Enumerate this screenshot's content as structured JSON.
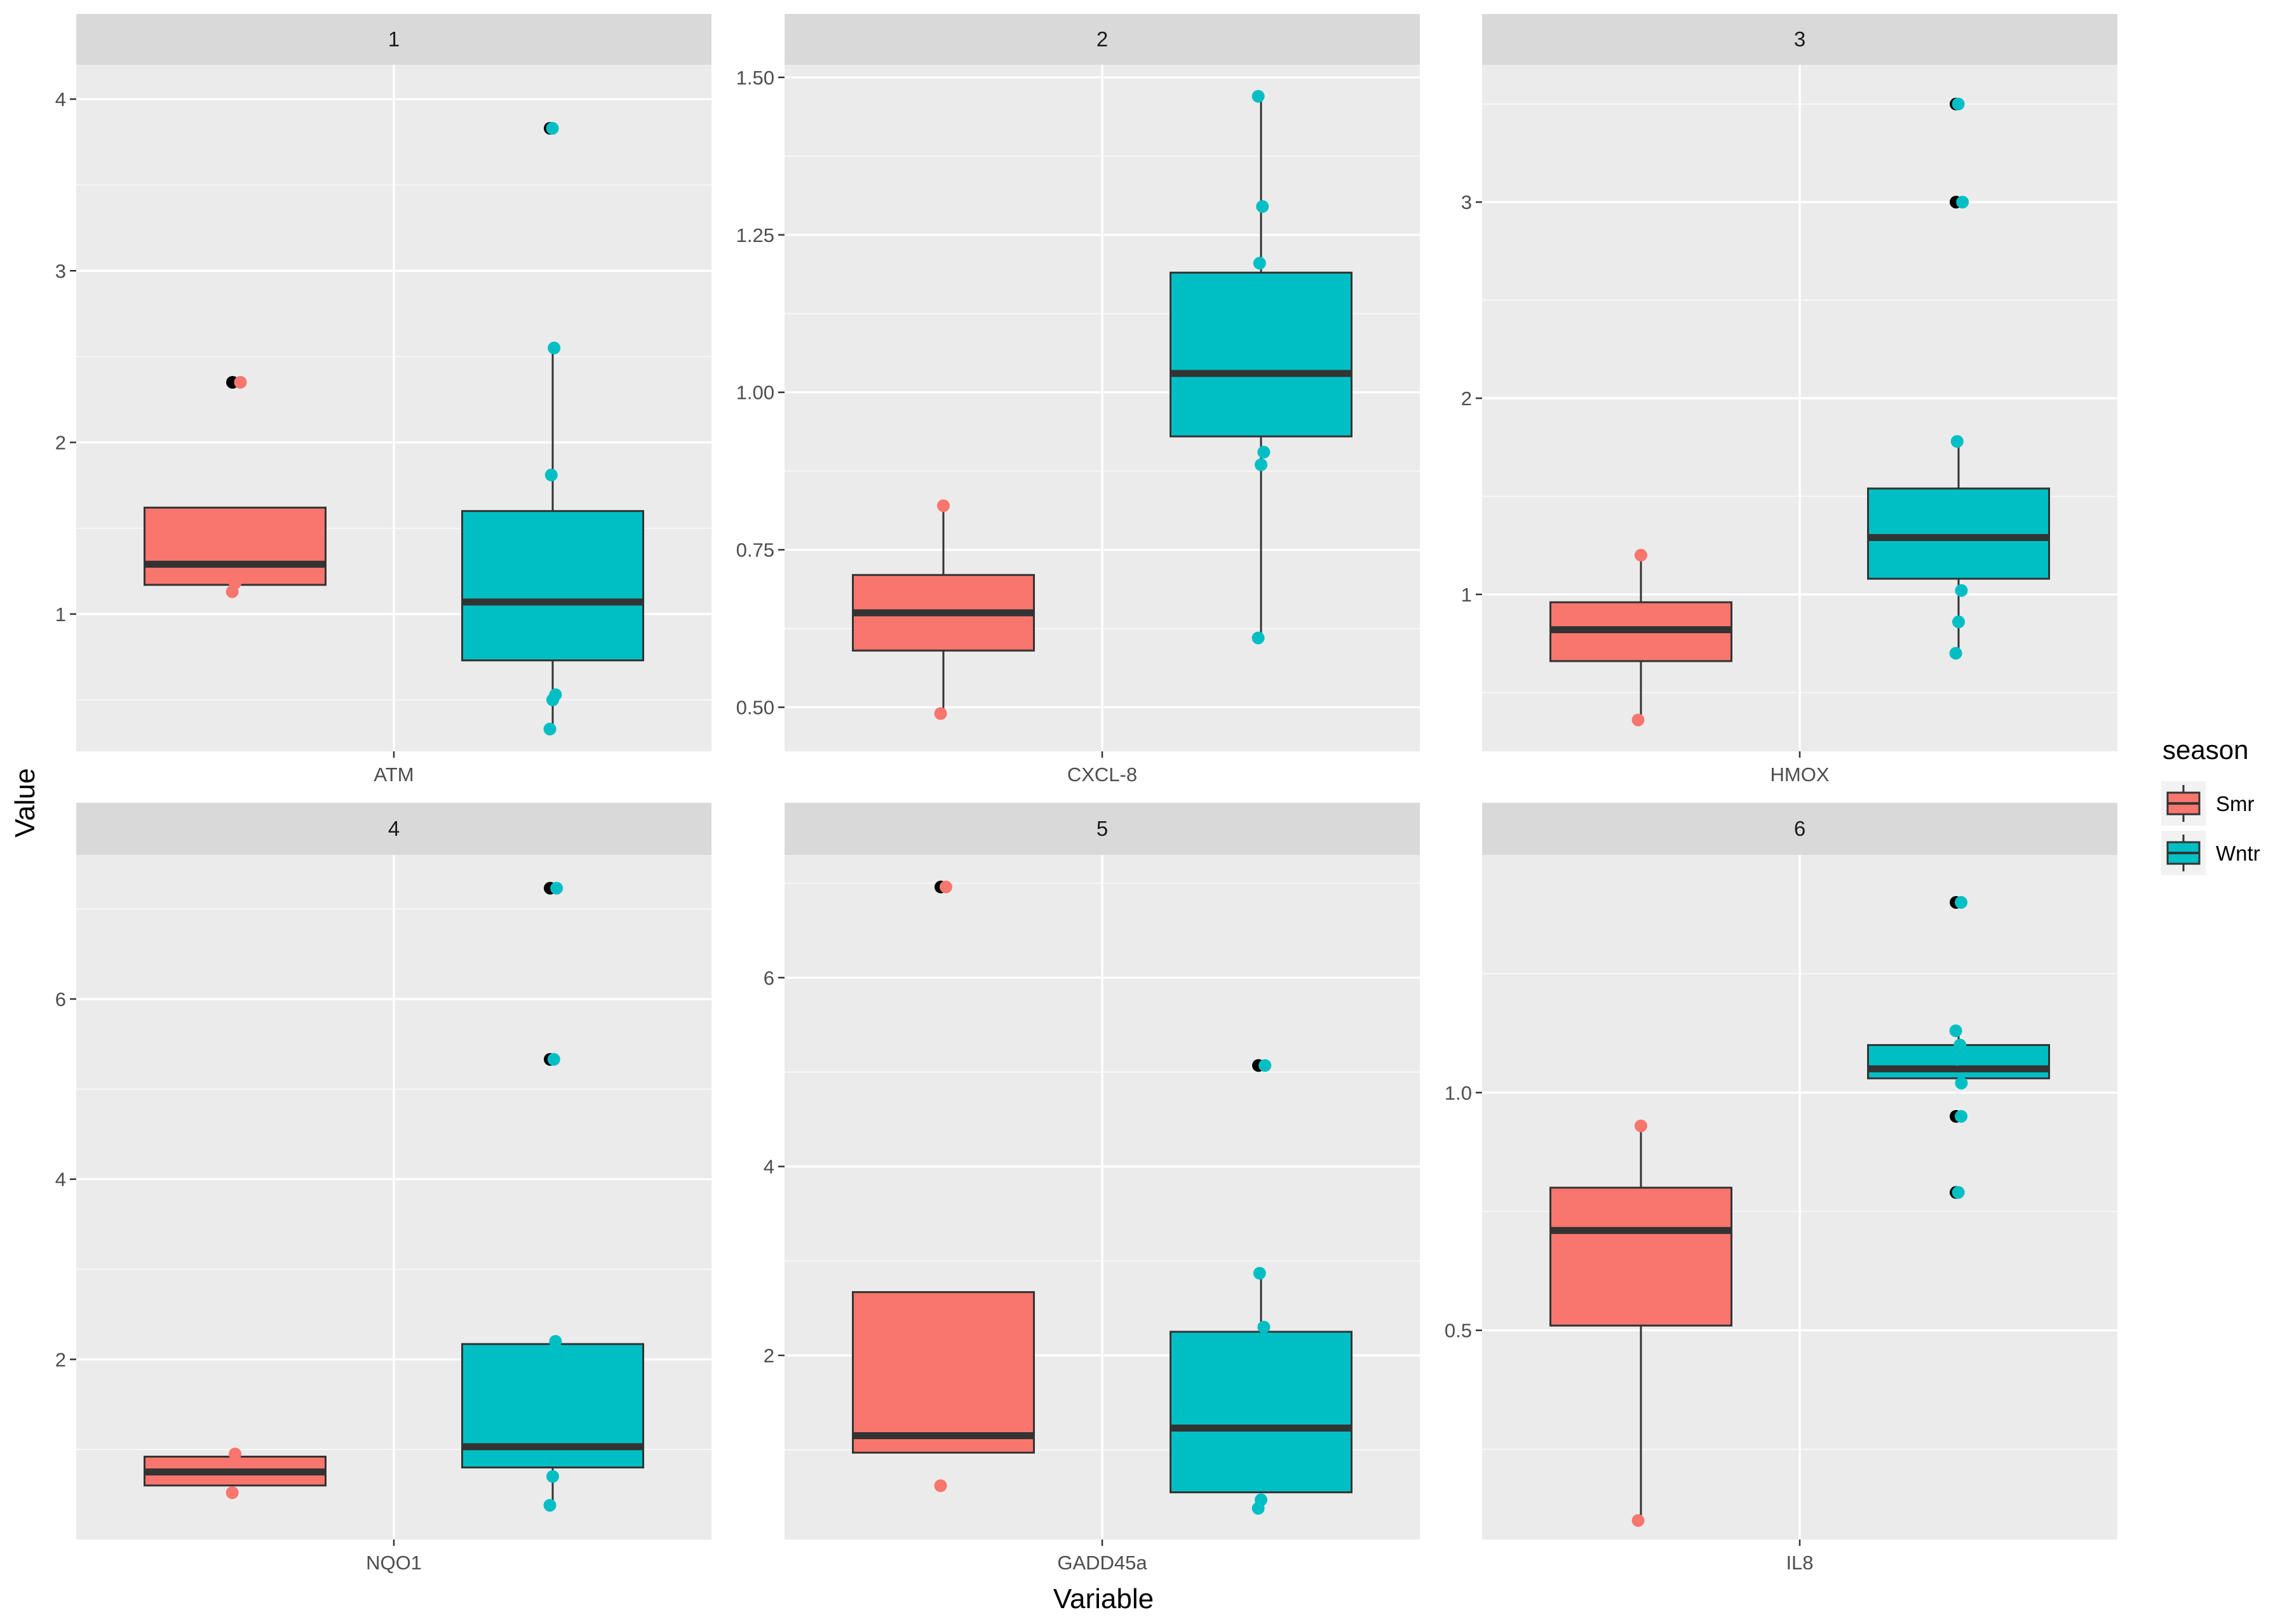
{
  "chart_data": {
    "type": "box",
    "facet_layout": "3 columns x 2 rows",
    "xlabel": "Variable",
    "ylabel": "Value",
    "legend": {
      "title": "season",
      "position": "right",
      "items": [
        {
          "label": "Smr",
          "color": "#f8766d"
        },
        {
          "label": "Wntr",
          "color": "#00bfc4"
        }
      ]
    },
    "panels": [
      {
        "strip": "1",
        "category": "ATM",
        "ylim": [
          0.2,
          4.2
        ],
        "yticks": [
          1,
          2,
          3,
          4
        ],
        "ytick_labels": [
          "1",
          "2",
          "3",
          "4"
        ],
        "groups": [
          {
            "season": "Smr",
            "q1": 1.17,
            "median": 1.29,
            "q3": 1.62,
            "whisker_low": 1.17,
            "whisker_high": 1.62,
            "outliers": [
              2.35
            ],
            "points": [
              1.13,
              1.18,
              2.35
            ]
          },
          {
            "season": "Wntr",
            "q1": 0.73,
            "median": 1.07,
            "q3": 1.6,
            "whisker_low": 0.33,
            "whisker_high": 2.55,
            "outliers": [
              3.83
            ],
            "points": [
              0.33,
              0.5,
              0.53,
              1.81,
              2.55,
              3.83
            ]
          }
        ]
      },
      {
        "strip": "2",
        "category": "CXCL-8",
        "ylim": [
          0.43,
          1.52
        ],
        "yticks": [
          0.5,
          0.75,
          1.0,
          1.25,
          1.5
        ],
        "ytick_labels": [
          "0.50",
          "0.75",
          "1.00",
          "1.25",
          "1.50"
        ],
        "groups": [
          {
            "season": "Smr",
            "q1": 0.59,
            "median": 0.65,
            "q3": 0.71,
            "whisker_low": 0.49,
            "whisker_high": 0.82,
            "outliers": [],
            "points": [
              0.49,
              0.82
            ]
          },
          {
            "season": "Wntr",
            "q1": 0.93,
            "median": 1.03,
            "q3": 1.19,
            "whisker_low": 0.61,
            "whisker_high": 1.47,
            "outliers": [],
            "points": [
              0.61,
              0.885,
              0.905,
              1.205,
              1.295,
              1.47
            ]
          }
        ]
      },
      {
        "strip": "3",
        "category": "HMOX",
        "ylim": [
          0.2,
          3.7
        ],
        "yticks": [
          1,
          2,
          3
        ],
        "ytick_labels": [
          "1",
          "2",
          "3"
        ],
        "groups": [
          {
            "season": "Smr",
            "q1": 0.66,
            "median": 0.82,
            "q3": 0.96,
            "whisker_low": 0.36,
            "whisker_high": 1.2,
            "outliers": [],
            "points": [
              0.36,
              1.2
            ]
          },
          {
            "season": "Wntr",
            "q1": 1.08,
            "median": 1.29,
            "q3": 1.54,
            "whisker_low": 0.7,
            "whisker_high": 1.78,
            "outliers": [
              3.0,
              3.5
            ],
            "points": [
              0.7,
              0.86,
              1.02,
              1.78,
              3.0,
              3.5
            ]
          }
        ]
      },
      {
        "strip": "4",
        "category": "NQO1",
        "ylim": [
          0.0,
          7.6
        ],
        "yticks": [
          2,
          4,
          6
        ],
        "ytick_labels": [
          "2",
          "4",
          "6"
        ],
        "groups": [
          {
            "season": "Smr",
            "q1": 0.6,
            "median": 0.75,
            "q3": 0.92,
            "whisker_low": 0.6,
            "whisker_high": 0.92,
            "outliers": [],
            "points": [
              0.52,
              0.95
            ]
          },
          {
            "season": "Wntr",
            "q1": 0.8,
            "median": 1.03,
            "q3": 2.17,
            "whisker_low": 0.38,
            "whisker_high": 2.2,
            "outliers": [
              5.33,
              7.23
            ],
            "points": [
              0.38,
              0.7,
              2.2,
              5.33,
              7.23
            ]
          }
        ]
      },
      {
        "strip": "5",
        "category": "GADD45a",
        "ylim": [
          0.05,
          7.3
        ],
        "yticks": [
          2,
          4,
          6
        ],
        "ytick_labels": [
          "2",
          "4",
          "6"
        ],
        "groups": [
          {
            "season": "Smr",
            "q1": 0.97,
            "median": 1.15,
            "q3": 2.67,
            "whisker_low": 0.97,
            "whisker_high": 2.67,
            "outliers": [
              6.96
            ],
            "points": [
              0.62,
              6.96
            ]
          },
          {
            "season": "Wntr",
            "q1": 0.55,
            "median": 1.23,
            "q3": 2.25,
            "whisker_low": 0.55,
            "whisker_high": 2.87,
            "outliers": [
              5.07
            ],
            "points": [
              0.38,
              0.47,
              2.3,
              2.87,
              5.07
            ]
          }
        ]
      },
      {
        "strip": "6",
        "category": "IL8",
        "ylim": [
          0.06,
          1.5
        ],
        "yticks": [
          0.5,
          1.0
        ],
        "ytick_labels": [
          "0.5",
          "1.0"
        ],
        "groups": [
          {
            "season": "Smr",
            "q1": 0.51,
            "median": 0.71,
            "q3": 0.8,
            "whisker_low": 0.1,
            "whisker_high": 0.93,
            "outliers": [],
            "points": [
              0.1,
              0.93
            ]
          },
          {
            "season": "Wntr",
            "q1": 1.03,
            "median": 1.05,
            "q3": 1.1,
            "whisker_low": 1.03,
            "whisker_high": 1.13,
            "outliers": [
              0.79,
              0.95,
              1.4
            ],
            "points": [
              0.79,
              0.95,
              1.02,
              1.07,
              1.1,
              1.13,
              1.4
            ]
          }
        ]
      }
    ]
  }
}
